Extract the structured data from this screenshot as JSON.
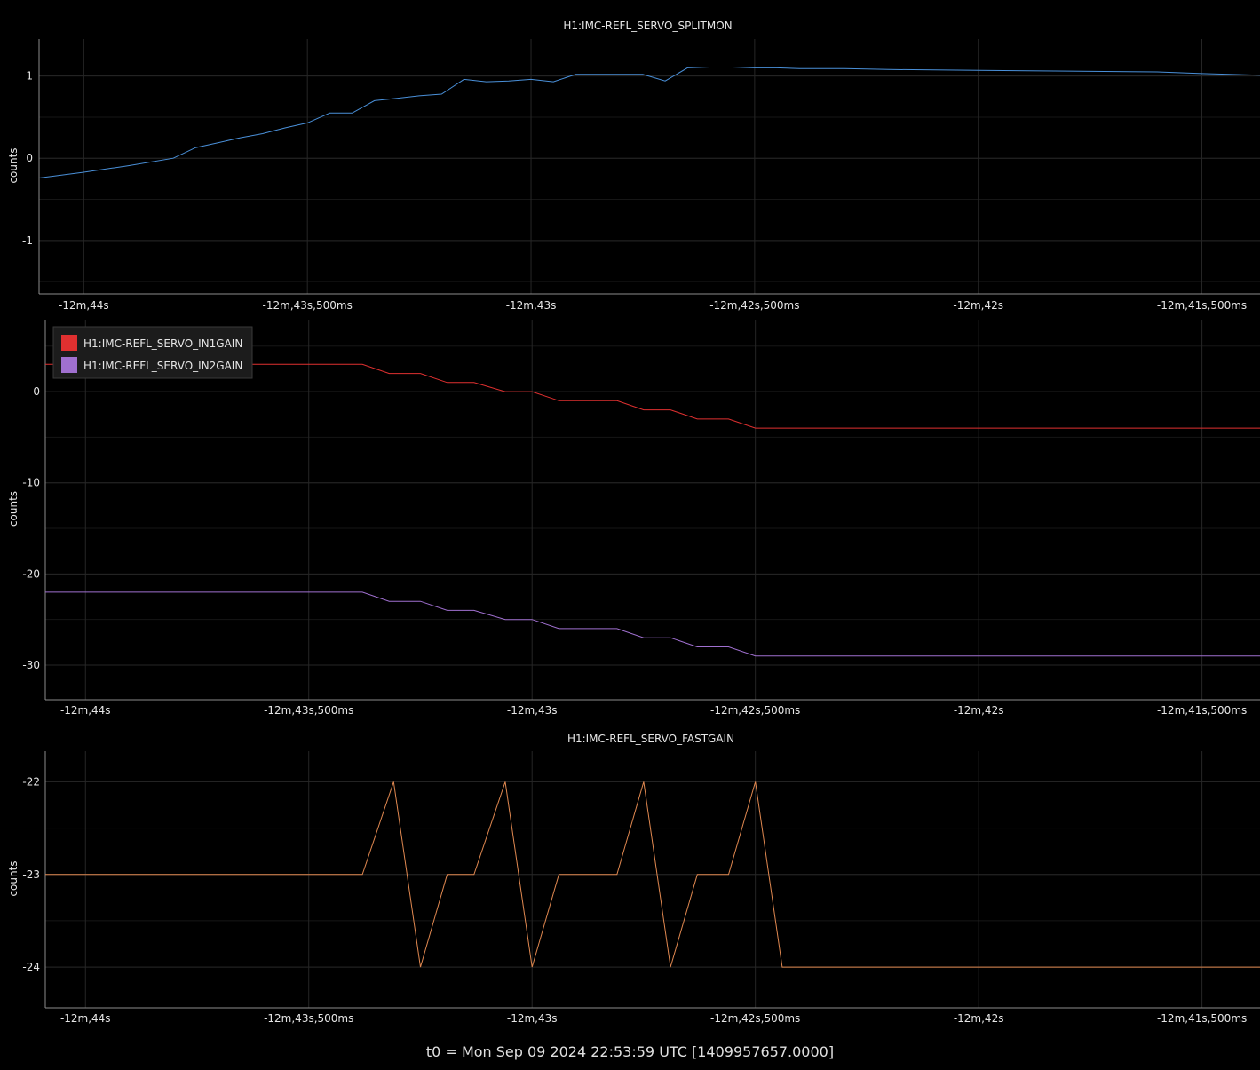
{
  "footer": "t0 = Mon Sep 09 2024 22:53:59 UTC [1409957657.0000]",
  "colors": {
    "background": "#000000",
    "grid": "#262626",
    "axis": "#8c8c8c",
    "text": "#e6e6e6",
    "splitmon": "#4a90d9",
    "in1gain": "#e03030",
    "in2gain": "#a070d0",
    "fastgain": "#e08850"
  },
  "chart_data": [
    {
      "type": "line",
      "title": "H1:IMC-REFL_SERVO_SPLITMON",
      "ylabel": "counts",
      "x_tick_labels": [
        "-12m,44s",
        "-12m,43s,500ms",
        "-12m,43s",
        "-12m,42s,500ms",
        "-12m,42s",
        "-12m,41s,500ms"
      ],
      "x_ticks": [
        -764.0,
        -763.5,
        -763.0,
        -762.5,
        -762.0,
        -761.5
      ],
      "xlim": [
        -764.1,
        -761.37
      ],
      "yticks": [
        -1,
        0,
        1
      ],
      "ylim": [
        -1.65,
        1.45
      ],
      "grid": true,
      "series": [
        {
          "name": "H1:IMC-REFL_SERVO_SPLITMON",
          "color_key": "splitmon",
          "x": [
            -764.1,
            -764.0,
            -763.9,
            -763.8,
            -763.75,
            -763.7,
            -763.65,
            -763.6,
            -763.55,
            -763.5,
            -763.45,
            -763.4,
            -763.35,
            -763.3,
            -763.25,
            -763.2,
            -763.15,
            -763.1,
            -763.05,
            -763.0,
            -762.95,
            -762.9,
            -762.8,
            -762.75,
            -762.7,
            -762.65,
            -762.6,
            -762.55,
            -762.5,
            -762.45,
            -762.4,
            -762.35,
            -762.3,
            -762.2,
            -762.0,
            -761.8,
            -761.6,
            -761.5,
            -761.37
          ],
          "y": [
            -0.24,
            -0.17,
            -0.09,
            0.0,
            0.13,
            0.19,
            0.25,
            0.3,
            0.37,
            0.43,
            0.55,
            0.55,
            0.7,
            0.73,
            0.76,
            0.78,
            0.96,
            0.93,
            0.94,
            0.96,
            0.93,
            1.02,
            1.02,
            1.02,
            0.94,
            1.1,
            1.11,
            1.11,
            1.1,
            1.1,
            1.09,
            1.09,
            1.09,
            1.08,
            1.07,
            1.06,
            1.05,
            1.03,
            1.01
          ]
        }
      ]
    },
    {
      "type": "line",
      "title": "",
      "ylabel": "counts",
      "x_tick_labels": [
        "-12m,44s",
        "-12m,43s,500ms",
        "-12m,43s",
        "-12m,42s,500ms",
        "-12m,42s",
        "-12m,41s,500ms"
      ],
      "x_ticks": [
        -764.0,
        -763.5,
        -763.0,
        -762.5,
        -762.0,
        -761.5
      ],
      "xlim": [
        -764.09,
        -761.37
      ],
      "yticks": [
        -30,
        -20,
        -10,
        0
      ],
      "ylim": [
        -33.8,
        7.9
      ],
      "grid": true,
      "legend": "top-left",
      "series": [
        {
          "name": "H1:IMC-REFL_SERVO_IN1GAIN",
          "color_key": "in1gain",
          "x": [
            -764.09,
            -763.38,
            -763.32,
            -763.25,
            -763.19,
            -763.13,
            -763.06,
            -763.0,
            -762.94,
            -762.81,
            -762.75,
            -762.69,
            -762.63,
            -762.56,
            -762.5,
            -761.37
          ],
          "y": [
            3,
            3,
            2,
            2,
            1,
            1,
            0,
            0,
            -1,
            -1,
            -2,
            -2,
            -3,
            -3,
            -4,
            -4
          ]
        },
        {
          "name": "H1:IMC-REFL_SERVO_IN2GAIN",
          "color_key": "in2gain",
          "x": [
            -764.09,
            -763.38,
            -763.32,
            -763.25,
            -763.19,
            -763.13,
            -763.06,
            -763.0,
            -762.94,
            -762.81,
            -762.75,
            -762.69,
            -762.63,
            -762.56,
            -762.5,
            -761.37
          ],
          "y": [
            -22,
            -22,
            -23,
            -23,
            -24,
            -24,
            -25,
            -25,
            -26,
            -26,
            -27,
            -27,
            -28,
            -28,
            -29,
            -29
          ]
        }
      ]
    },
    {
      "type": "line",
      "title": "H1:IMC-REFL_SERVO_FASTGAIN",
      "ylabel": "counts",
      "x_tick_labels": [
        "-12m,44s",
        "-12m,43s,500ms",
        "-12m,43s",
        "-12m,42s,500ms",
        "-12m,42s",
        "-12m,41s,500ms"
      ],
      "x_ticks": [
        -764.0,
        -763.5,
        -763.0,
        -762.5,
        -762.0,
        -761.5
      ],
      "xlim": [
        -764.09,
        -761.37
      ],
      "yticks": [
        -24,
        -23,
        -22
      ],
      "ylim": [
        -24.44,
        -21.67
      ],
      "grid": true,
      "series": [
        {
          "name": "H1:IMC-REFL_SERVO_FASTGAIN",
          "color_key": "fastgain",
          "x": [
            -764.09,
            -763.38,
            -763.31,
            -763.25,
            -763.19,
            -763.13,
            -763.06,
            -763.0,
            -762.94,
            -762.81,
            -762.75,
            -762.69,
            -762.63,
            -762.56,
            -762.5,
            -762.44,
            -761.37
          ],
          "y": [
            -23,
            -23,
            -22,
            -24,
            -23,
            -23,
            -22,
            -24,
            -23,
            -23,
            -22,
            -24,
            -23,
            -23,
            -22,
            -24,
            -24
          ]
        }
      ]
    }
  ]
}
